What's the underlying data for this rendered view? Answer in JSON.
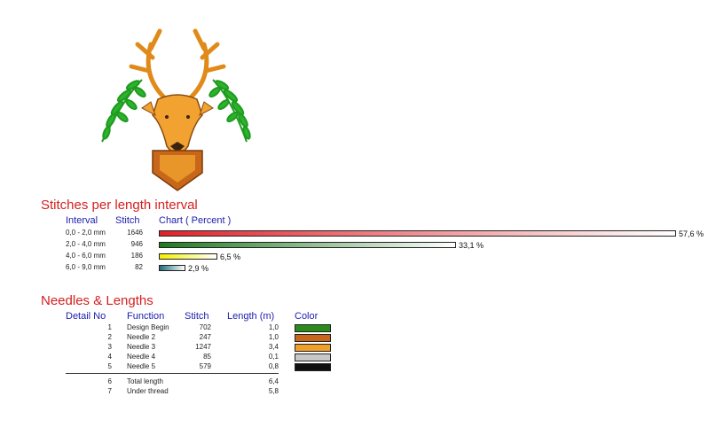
{
  "stitches_section": {
    "title": "Stitches per length interval",
    "col_interval": "Interval",
    "col_stitch": "Stitch",
    "col_chart": "Chart ( Percent )",
    "rows": [
      {
        "interval": "0,0 - 2,0 mm",
        "stitch": "1646",
        "percent_label": "57,6 %",
        "percent": 57.6,
        "gradient": [
          "#e0222a",
          "#ffffff"
        ]
      },
      {
        "interval": "2,0 - 4,0 mm",
        "stitch": "946",
        "percent_label": "33,1 %",
        "percent": 33.1,
        "gradient": [
          "#1f7a1f",
          "#ffffff"
        ]
      },
      {
        "interval": "4,0 - 6,0 mm",
        "stitch": "186",
        "percent_label": "6,5 %",
        "percent": 6.5,
        "gradient": [
          "#f5f000",
          "#ffffff"
        ]
      },
      {
        "interval": "6,0 - 9,0 mm",
        "stitch": "82",
        "percent_label": "2,9 %",
        "percent": 2.9,
        "gradient": [
          "#1f6f7a",
          "#ffffff"
        ]
      }
    ]
  },
  "needles_section": {
    "title": "Needles & Lengths",
    "col_detail": "Detail No",
    "col_function": "Function",
    "col_stitch": "Stitch",
    "col_length": "Length (m)",
    "col_color": "Color",
    "rows": [
      {
        "no": "1",
        "function": "Design Begin",
        "stitch": "702",
        "length": "1,0",
        "color": "#2a8a1a"
      },
      {
        "no": "2",
        "function": "Needle 2",
        "stitch": "247",
        "length": "1,0",
        "color": "#c8661a"
      },
      {
        "no": "3",
        "function": "Needle 3",
        "stitch": "1247",
        "length": "3,4",
        "color": "#f0a028"
      },
      {
        "no": "4",
        "function": "Needle 4",
        "stitch": "85",
        "length": "0,1",
        "color": "#c8c8c8"
      },
      {
        "no": "5",
        "function": "Needle 5",
        "stitch": "579",
        "length": "0,8",
        "color": "#101010"
      }
    ],
    "totals": [
      {
        "no": "6",
        "function": "Total length",
        "length": "6,4"
      },
      {
        "no": "7",
        "function": "Under thread",
        "length": "5,8"
      }
    ]
  }
}
